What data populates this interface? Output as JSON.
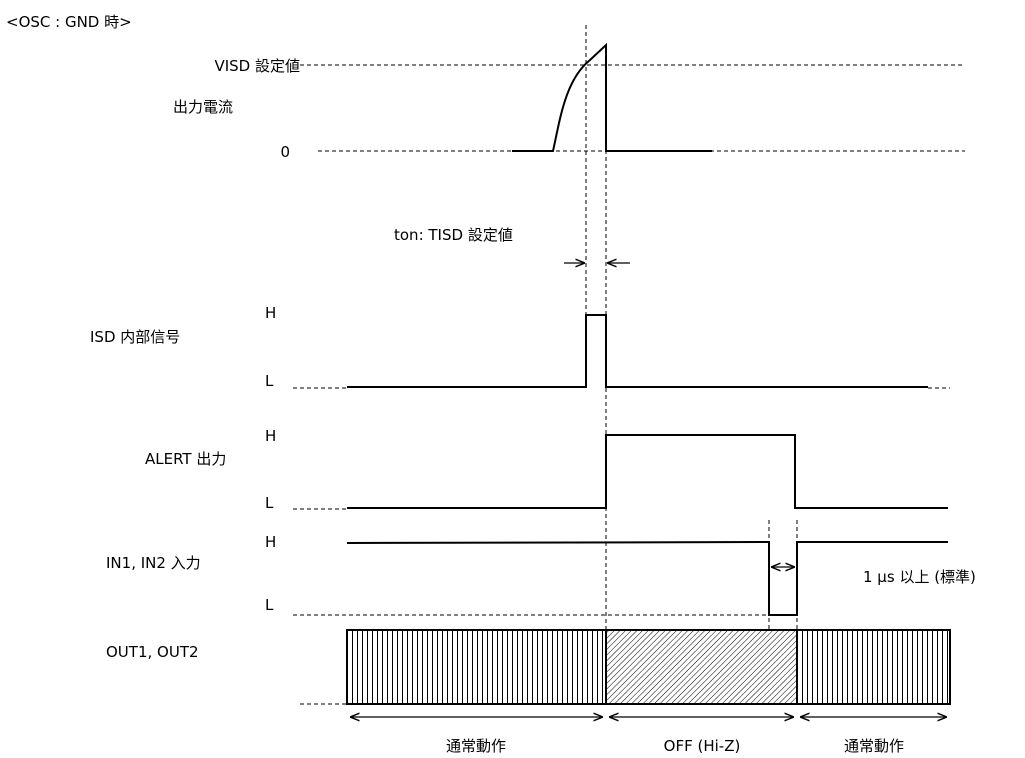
{
  "header": "<OSC : GND 時>",
  "current": {
    "visd_label": "VISD 設定値",
    "title": "出力電流",
    "zero_label": "0"
  },
  "ton_label": "ton: TISD 設定値",
  "signals": [
    {
      "name": "ISD 内部信号",
      "high": "H",
      "low": "L"
    },
    {
      "name": "ALERT 出力",
      "high": "H",
      "low": "L"
    },
    {
      "name": "IN1, IN2 入力",
      "high": "H",
      "low": "L"
    }
  ],
  "out_label": "OUT1, OUT2",
  "pulse_width_label": "1 μs 以上 (標準)",
  "segments": {
    "normal_1": "通常動作",
    "off": "OFF (Hi-Z)",
    "normal_2": "通常動作"
  }
}
